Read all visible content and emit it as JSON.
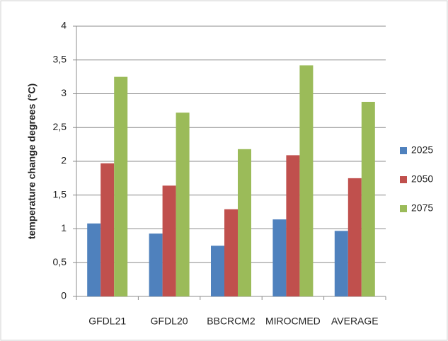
{
  "chart_data": {
    "type": "bar",
    "y_label": "temperature change degrees (°C)",
    "categories": [
      "GFDL21",
      "GFDL20",
      "BBCRCM2",
      "MIROCMED",
      "AVERAGE"
    ],
    "series": [
      {
        "name": "2025",
        "color": "#4f81bd",
        "values": [
          1.08,
          0.93,
          0.75,
          1.14,
          0.97
        ]
      },
      {
        "name": "2050",
        "color": "#c0504d",
        "values": [
          1.97,
          1.64,
          1.29,
          2.09,
          1.75
        ]
      },
      {
        "name": "2075",
        "color": "#9bbb59",
        "values": [
          3.25,
          2.72,
          2.18,
          3.42,
          2.88
        ]
      }
    ],
    "ylim": [
      0,
      4
    ],
    "yticks": [
      0,
      {
        "value": 0.5,
        "label": "0,5"
      },
      1,
      {
        "value": 1.5,
        "label": "1,5"
      },
      2,
      {
        "value": 2.5,
        "label": "2,5"
      },
      3,
      {
        "value": 3.5,
        "label": "3,5"
      },
      4
    ],
    "grid": true,
    "legend": "right"
  }
}
